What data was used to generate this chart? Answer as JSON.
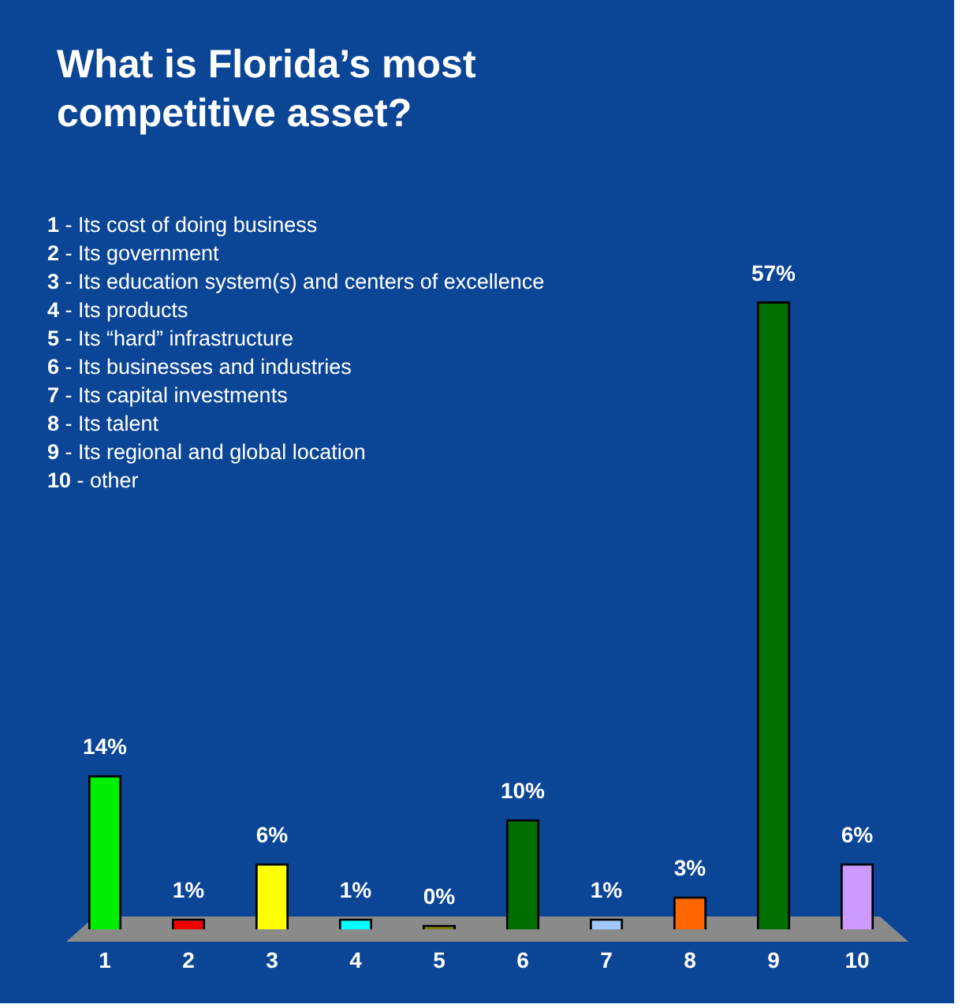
{
  "chart_data": {
    "type": "bar",
    "title": "What is Florida’s most competitive asset?",
    "categories": [
      "1",
      "2",
      "3",
      "4",
      "5",
      "6",
      "7",
      "8",
      "9",
      "10"
    ],
    "values": [
      14,
      1,
      6,
      1,
      0,
      10,
      1,
      3,
      57,
      6
    ],
    "colors": [
      "#00ee00",
      "#ee0000",
      "#ffff00",
      "#00ffff",
      "#808000",
      "#006f00",
      "#a0c8ff",
      "#ff6600",
      "#007000",
      "#cc99ff"
    ],
    "value_labels": [
      "14%",
      "1%",
      "6%",
      "1%",
      "0%",
      "10%",
      "1%",
      "3%",
      "57%",
      "6%"
    ],
    "legend": false,
    "grid": false,
    "annotations": [
      "1 - Its cost of doing business",
      "2 - Its government",
      "3 - Its education system(s) and centers of excellence",
      "4 - Its products",
      "5 - Its “hard” infrastructure",
      "6 - Its businesses and industries",
      "7 - Its capital investments",
      "8 - Its talent",
      "9 - Its regional and global location",
      "10 - other"
    ]
  }
}
